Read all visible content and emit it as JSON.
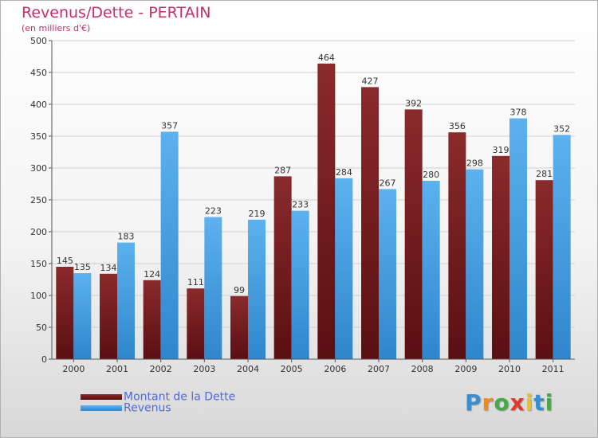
{
  "header": {
    "title": "Revenus/Dette - PERTAIN",
    "subtitle": "(en milliers d'€)"
  },
  "legend": {
    "items": [
      {
        "label": "Montant de la Dette",
        "color": "#7a1f22"
      },
      {
        "label": "Revenus",
        "color": "#4aa3e8"
      }
    ]
  },
  "logo": {
    "letters": [
      "P",
      "r",
      "o",
      "x",
      "i",
      "t",
      "i"
    ],
    "colors": [
      "#3a8ed0",
      "#f08a1a",
      "#4aa84a",
      "#e03a2a",
      "#f0c020",
      "#3a8ed0",
      "#4aa84a"
    ]
  },
  "chart_data": {
    "type": "bar",
    "title": "Revenus/Dette - PERTAIN",
    "subtitle": "(en milliers d'€)",
    "categories": [
      "2000",
      "2001",
      "2002",
      "2003",
      "2004",
      "2005",
      "2006",
      "2007",
      "2008",
      "2009",
      "2010",
      "2011"
    ],
    "series": [
      {
        "name": "Montant de la Dette",
        "color": "#7a1f22",
        "values": [
          145,
          134,
          124,
          111,
          99,
          287,
          464,
          427,
          392,
          356,
          319,
          281
        ]
      },
      {
        "name": "Revenus",
        "color": "#4aa3e8",
        "values": [
          135,
          183,
          357,
          223,
          219,
          233,
          284,
          267,
          280,
          298,
          378,
          352
        ]
      }
    ],
    "ylim": [
      0,
      500
    ],
    "yticks": [
      0,
      50,
      100,
      150,
      200,
      250,
      300,
      350,
      400,
      450,
      500
    ],
    "grid": true,
    "legend": "bottom-left"
  }
}
